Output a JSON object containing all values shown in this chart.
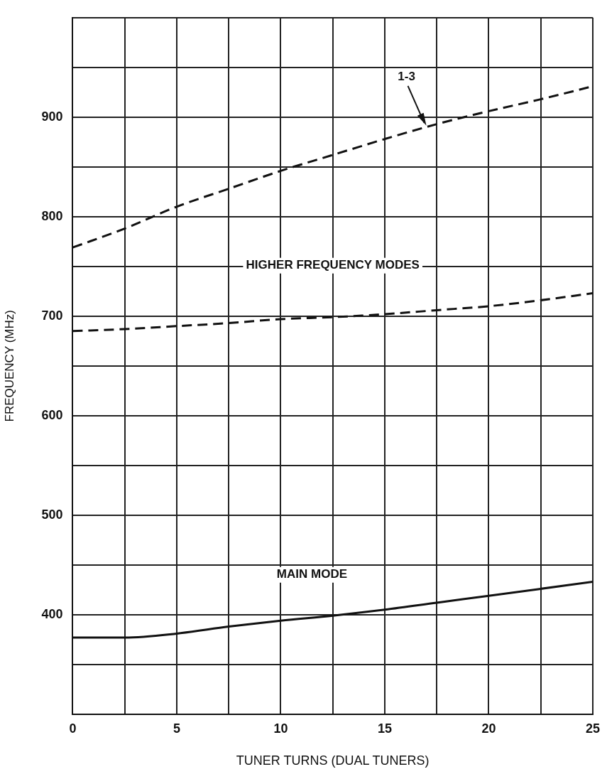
{
  "chart_data": {
    "type": "line",
    "xlabel": "TUNER TURNS (DUAL TUNERS)",
    "ylabel": "FREQUENCY (MHz)",
    "xlim": [
      0,
      25
    ],
    "ylim": [
      300,
      1000
    ],
    "xticks": [
      0,
      {
        "value": 2.5,
        "label": null
      },
      5,
      {
        "value": 7.5,
        "label": null
      },
      10,
      {
        "value": 12.5,
        "label": null
      },
      15,
      {
        "value": 17.5,
        "label": null
      },
      20,
      {
        "value": 22.5,
        "label": null
      },
      25
    ],
    "yticks": [
      {
        "value": 300,
        "label": null
      },
      {
        "value": 350,
        "label": null
      },
      400,
      {
        "value": 450,
        "label": null
      },
      500,
      {
        "value": 550,
        "label": null
      },
      600,
      {
        "value": 650,
        "label": null
      },
      700,
      {
        "value": 750,
        "label": null
      },
      800,
      {
        "value": 850,
        "label": null
      },
      900,
      {
        "value": 950,
        "label": null
      },
      {
        "value": 1000,
        "label": null
      }
    ],
    "x": [
      0,
      2.5,
      5,
      7.5,
      10,
      12.5,
      15,
      17.5,
      20,
      22.5,
      25
    ],
    "grid": true,
    "legend": false,
    "marker": "none",
    "series": [
      {
        "color": "#111111",
        "line_style": "dashed",
        "values": [
          769,
          788,
          810,
          828,
          846,
          862,
          878,
          893,
          906,
          918,
          931
        ]
      },
      {
        "color": "#111111",
        "line_style": "dashed",
        "values": [
          685,
          687,
          690,
          693,
          697,
          699,
          702,
          706,
          710,
          716,
          723
        ]
      },
      {
        "color": "#111111",
        "line_style": "solid",
        "values": [
          377,
          377,
          381,
          388,
          394,
          399,
          405,
          412,
          419,
          426,
          433
        ]
      }
    ],
    "annotations": [
      {
        "text": "1-3",
        "x": 17,
        "y": 890
      },
      "HIGHER FREQUENCY MODES",
      "MAIN MODE"
    ]
  }
}
